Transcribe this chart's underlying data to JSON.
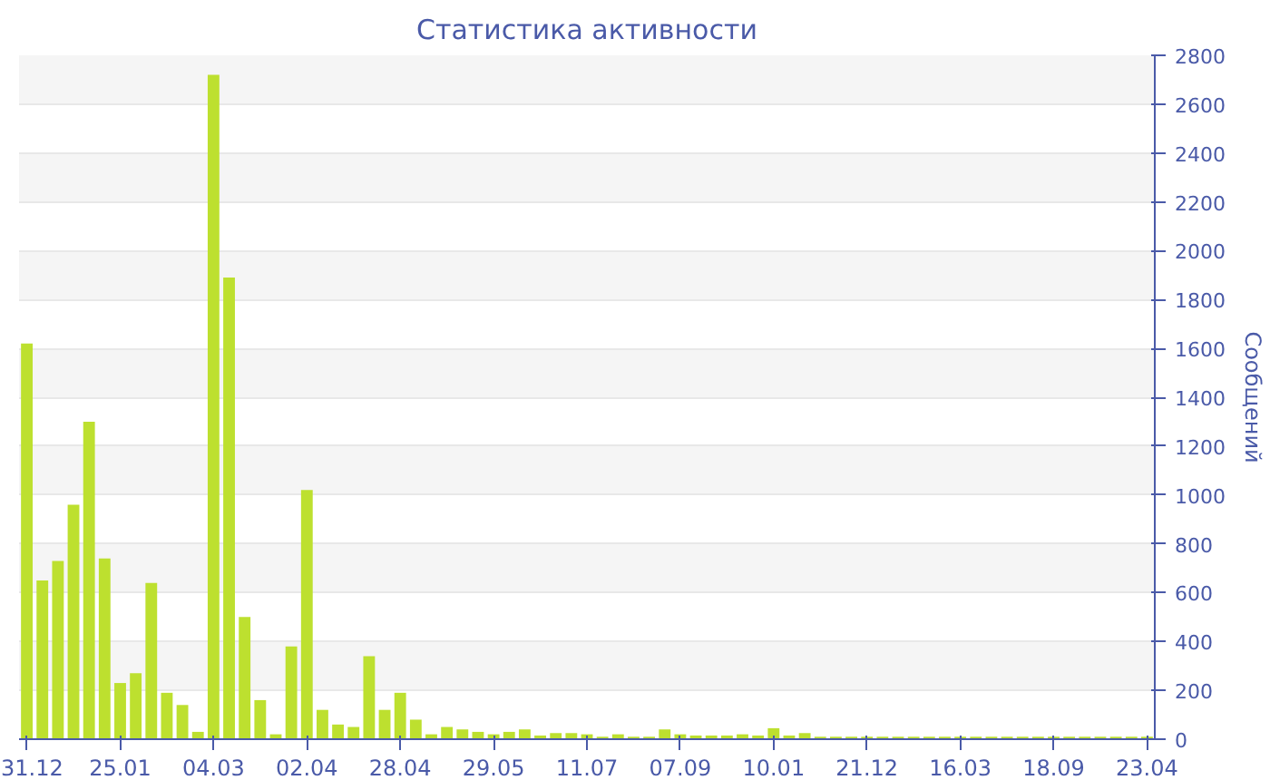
{
  "chart_data": {
    "type": "bar",
    "title": "Статистика активности",
    "ylabel": "Сообщений",
    "categories": [
      "31.12",
      null,
      null,
      null,
      null,
      null,
      "25.01",
      null,
      null,
      null,
      null,
      null,
      "04.03",
      null,
      null,
      null,
      null,
      null,
      "02.04",
      null,
      null,
      null,
      null,
      null,
      "28.04",
      null,
      null,
      null,
      null,
      null,
      "29.05",
      null,
      null,
      null,
      null,
      null,
      "11.07",
      null,
      null,
      null,
      null,
      null,
      "07.09",
      null,
      null,
      null,
      null,
      null,
      "10.01",
      null,
      null,
      null,
      null,
      null,
      "21.12",
      null,
      null,
      null,
      null,
      null,
      "16.03",
      null,
      null,
      null,
      null,
      null,
      "18.09",
      null,
      null,
      null,
      null,
      null,
      "23.04"
    ],
    "values": [
      1620,
      650,
      730,
      960,
      1300,
      740,
      230,
      270,
      640,
      190,
      140,
      30,
      2720,
      1890,
      500,
      160,
      20,
      380,
      1020,
      120,
      60,
      50,
      340,
      120,
      190,
      80,
      20,
      50,
      40,
      30,
      20,
      30,
      40,
      15,
      25,
      25,
      20,
      10,
      20,
      10,
      10,
      40,
      20,
      15,
      15,
      15,
      20,
      15,
      45,
      15,
      25,
      10,
      10,
      10,
      10,
      10,
      10,
      10,
      10,
      10,
      10,
      10,
      10,
      10,
      10,
      10,
      10,
      10,
      10,
      10,
      10,
      10,
      10
    ],
    "color": "#bde02f",
    "ylim": [
      0,
      2800
    ],
    "yticks": [
      0,
      200,
      400,
      600,
      800,
      1000,
      1200,
      1400,
      1600,
      1800,
      2000,
      2200,
      2400,
      2600,
      2800
    ],
    "grid": "y"
  }
}
